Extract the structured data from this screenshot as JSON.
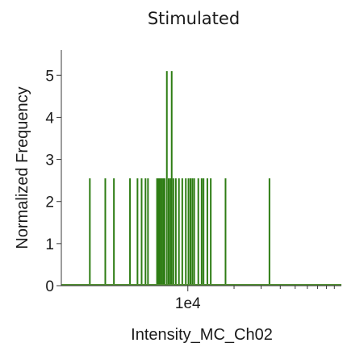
{
  "chart_data": {
    "type": "bar",
    "title": "Stimulated",
    "xlabel": "Intensity_MC_Ch02",
    "ylabel": "Normalized Frequency",
    "x_scale": "log",
    "xlim": [
      1500,
      100000
    ],
    "ylim": [
      0,
      5.6
    ],
    "y_ticks": [
      0,
      1,
      2,
      3,
      4,
      5
    ],
    "y_tick_labels": [
      "0",
      "1",
      "2",
      "3",
      "4",
      "5"
    ],
    "x_ticks": [
      10000
    ],
    "x_tick_labels": [
      "1e4"
    ],
    "x_minor_ticks": [
      20000,
      30000,
      40000,
      50000,
      60000,
      70000,
      80000,
      90000
    ],
    "grid": false,
    "legend": "none",
    "series": [
      {
        "color": "#2e7d14",
        "x": [
          2300,
          2900,
          3300,
          4200,
          4700,
          5000,
          5300,
          5500,
          6300,
          6450,
          6600,
          6750,
          6900,
          7050,
          7300,
          7500,
          7700,
          7850,
          8050,
          8350,
          8750,
          9200,
          9700,
          10100,
          10400,
          10700,
          11000,
          11700,
          12300,
          12650,
          13400,
          14100,
          17600,
          34000
        ],
        "values": [
          2.55,
          2.55,
          2.55,
          2.55,
          2.55,
          2.55,
          2.55,
          2.55,
          2.55,
          2.55,
          2.55,
          2.55,
          2.55,
          2.55,
          5.1,
          2.55,
          2.55,
          5.1,
          2.55,
          2.55,
          2.55,
          2.55,
          2.55,
          2.55,
          2.55,
          2.55,
          2.55,
          2.55,
          2.55,
          2.55,
          2.55,
          2.55,
          2.55,
          2.55
        ]
      }
    ]
  }
}
